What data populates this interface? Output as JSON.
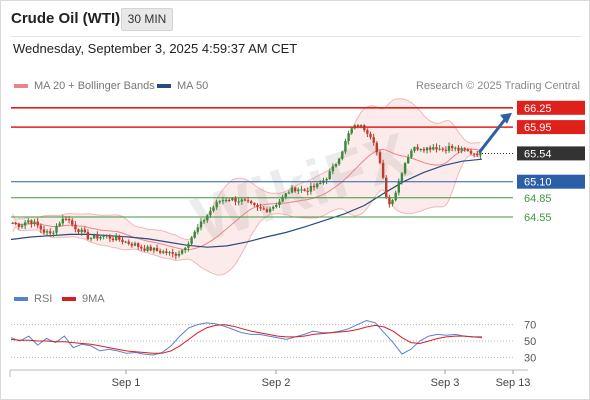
{
  "header": {
    "instrument": "Crude Oil (WTI)",
    "timeframe": "30 MIN",
    "datetime": "Wednesday, September 3, 2025 4:59:37 AM CET"
  },
  "legend": {
    "ma20": "MA 20 + Bollinger Bands",
    "ma50": "MA 50",
    "credit": "Research © 2025 Trading Central",
    "rsi": "RSI",
    "ma9": "9MA"
  },
  "colors": {
    "resistance": "#e0201b",
    "support_blue": "#2c5fa8",
    "support_green": "#3c9a3c",
    "ma20_bb": "#e98585",
    "ma50": "#2c4a7c",
    "rsi": "#5a7fd1",
    "ma9": "#d62020",
    "candle_up": "#3a8a3a",
    "candle_down": "#c0392b"
  },
  "watermark": "WikiFX",
  "chart_data": [
    {
      "type": "candlestick",
      "x_ticks": [
        "Sep 1",
        "Sep 2",
        "Sep 3",
        "Sep 13"
      ],
      "ylim": [
        63.85,
        66.45
      ],
      "levels": [
        {
          "value": 66.25,
          "label": "66.25",
          "style": "resistance"
        },
        {
          "value": 65.95,
          "label": "65.95",
          "style": "resistance"
        },
        {
          "value": 65.54,
          "label": "65.54",
          "style": "current"
        },
        {
          "value": 65.1,
          "label": "65.10",
          "style": "support_blue"
        },
        {
          "value": 64.85,
          "label": "64.85",
          "style": "support_green"
        },
        {
          "value": 64.55,
          "label": "64.55",
          "style": "support_green"
        }
      ],
      "close_path": [
        64.46,
        64.42,
        64.5,
        64.44,
        64.33,
        64.28,
        64.46,
        64.55,
        64.4,
        64.32,
        64.22,
        64.24,
        64.26,
        64.22,
        64.2,
        64.15,
        64.12,
        64.06,
        64.05,
        64.02,
        64.0,
        63.96,
        64.02,
        64.18,
        64.35,
        64.52,
        64.68,
        64.8,
        64.84,
        64.82,
        64.8,
        64.74,
        64.68,
        64.66,
        64.72,
        64.82,
        64.95,
        65.0,
        64.96,
        65.0,
        65.06,
        65.18,
        65.35,
        65.6,
        65.9,
        65.98,
        65.92,
        65.78,
        65.32,
        64.72,
        64.96,
        65.36,
        65.6,
        65.64,
        65.62,
        65.65,
        65.6,
        65.64,
        65.6,
        65.58,
        65.55,
        65.54
      ],
      "ma50_path": [
        64.2,
        64.24,
        64.26,
        64.28,
        64.28,
        64.26,
        64.24,
        64.21,
        64.16,
        64.11,
        64.08,
        64.1,
        64.16,
        64.24,
        64.31,
        64.4,
        64.5,
        64.6,
        64.73,
        64.92,
        65.1,
        65.24,
        65.35,
        65.42,
        65.45
      ],
      "forecast_arrow": {
        "from": 65.54,
        "to": 66.25
      }
    },
    {
      "type": "line",
      "name": "RSI",
      "y_ticks": [
        70,
        50,
        30
      ],
      "ylim": [
        22,
        78
      ],
      "rsi": [
        54,
        50,
        56,
        45,
        53,
        48,
        56,
        42,
        46,
        44,
        38,
        40,
        38,
        35,
        36,
        34,
        33,
        36,
        44,
        56,
        66,
        70,
        72,
        71,
        68,
        64,
        60,
        58,
        58,
        56,
        54,
        52,
        55,
        58,
        62,
        60,
        60,
        62,
        65,
        70,
        75,
        72,
        60,
        48,
        34,
        40,
        50,
        56,
        58,
        57,
        58,
        56,
        55,
        54
      ],
      "ma9": [
        52,
        51,
        51,
        50,
        50,
        49,
        49,
        48,
        47,
        46,
        44,
        42,
        40,
        38,
        37,
        36,
        35,
        35,
        38,
        44,
        52,
        60,
        66,
        69,
        70,
        68,
        65,
        62,
        60,
        58,
        56,
        55,
        55,
        56,
        58,
        59,
        60,
        61,
        62,
        64,
        67,
        69,
        67,
        62,
        54,
        48,
        47,
        50,
        53,
        55,
        56,
        56,
        55,
        55
      ]
    }
  ]
}
